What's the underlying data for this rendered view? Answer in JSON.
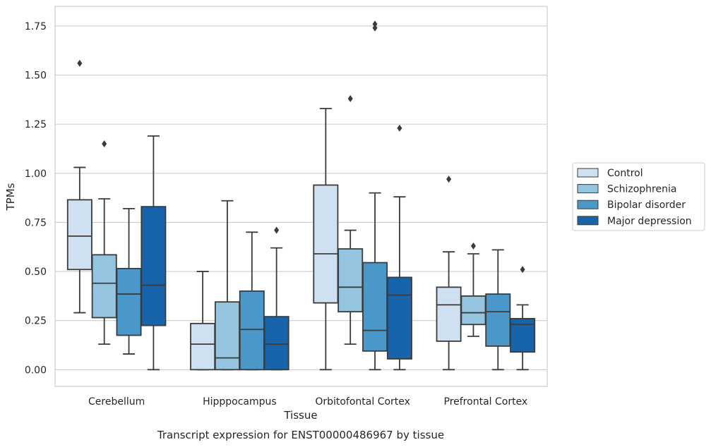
{
  "chart_data": {
    "type": "box",
    "caption": "Transcript expression for ENST00000486967 by tissue",
    "xlabel": "Tissue",
    "ylabel": "TPMs",
    "ylim": [
      -0.085,
      1.85
    ],
    "yticks": [
      "0.00",
      "0.25",
      "0.50",
      "0.75",
      "1.00",
      "1.25",
      "1.50",
      "1.75"
    ],
    "ytick_values": [
      0,
      0.25,
      0.5,
      0.75,
      1.0,
      1.25,
      1.5,
      1.75
    ],
    "grid": true,
    "legend_position": "right",
    "categories": [
      "Cerebellum",
      "Hipppocampus",
      "Orbitofontal Cortex",
      "Prefrontal Cortex"
    ],
    "series": [
      {
        "name": "Control",
        "color": "#cfe0f1",
        "boxes": [
          {
            "whislo": 0.29,
            "q1": 0.51,
            "med": 0.68,
            "q3": 0.865,
            "whishi": 1.03,
            "fliers": [
              1.56
            ]
          },
          {
            "whislo": 0.0,
            "q1": 0.0,
            "med": 0.13,
            "q3": 0.235,
            "whishi": 0.5,
            "fliers": []
          },
          {
            "whislo": 0.0,
            "q1": 0.34,
            "med": 0.59,
            "q3": 0.94,
            "whishi": 1.33,
            "fliers": []
          },
          {
            "whislo": 0.0,
            "q1": 0.145,
            "med": 0.33,
            "q3": 0.42,
            "whishi": 0.6,
            "fliers": [
              0.97
            ]
          }
        ]
      },
      {
        "name": "Schizophrenia",
        "color": "#94c4df",
        "boxes": [
          {
            "whislo": 0.13,
            "q1": 0.265,
            "med": 0.44,
            "q3": 0.585,
            "whishi": 0.87,
            "fliers": [
              1.15
            ]
          },
          {
            "whislo": 0.0,
            "q1": 0.0,
            "med": 0.06,
            "q3": 0.345,
            "whishi": 0.86,
            "fliers": []
          },
          {
            "whislo": 0.13,
            "q1": 0.295,
            "med": 0.42,
            "q3": 0.615,
            "whishi": 0.71,
            "fliers": [
              1.38
            ]
          },
          {
            "whislo": 0.17,
            "q1": 0.23,
            "med": 0.29,
            "q3": 0.375,
            "whishi": 0.59,
            "fliers": [
              0.63
            ]
          }
        ]
      },
      {
        "name": "Bipolar disorder",
        "color": "#4a98c9",
        "boxes": [
          {
            "whislo": 0.08,
            "q1": 0.175,
            "med": 0.385,
            "q3": 0.515,
            "whishi": 0.82,
            "fliers": []
          },
          {
            "whislo": 0.0,
            "q1": 0.0,
            "med": 0.205,
            "q3": 0.4,
            "whishi": 0.7,
            "fliers": []
          },
          {
            "whislo": 0.0,
            "q1": 0.095,
            "med": 0.2,
            "q3": 0.545,
            "whishi": 0.9,
            "fliers": [
              1.74,
              1.76
            ]
          },
          {
            "whislo": 0.0,
            "q1": 0.12,
            "med": 0.295,
            "q3": 0.385,
            "whishi": 0.61,
            "fliers": []
          }
        ]
      },
      {
        "name": "Major depression",
        "color": "#1764ab",
        "boxes": [
          {
            "whislo": 0.0,
            "q1": 0.225,
            "med": 0.43,
            "q3": 0.83,
            "whishi": 1.19,
            "fliers": []
          },
          {
            "whislo": 0.0,
            "q1": 0.0,
            "med": 0.13,
            "q3": 0.27,
            "whishi": 0.62,
            "fliers": [
              0.71
            ]
          },
          {
            "whislo": 0.0,
            "q1": 0.055,
            "med": 0.38,
            "q3": 0.47,
            "whishi": 0.88,
            "fliers": [
              1.23
            ]
          },
          {
            "whislo": 0.0,
            "q1": 0.09,
            "med": 0.23,
            "q3": 0.26,
            "whishi": 0.33,
            "fliers": [
              0.51
            ]
          }
        ]
      }
    ]
  },
  "colors": {
    "grid": "#cccccc",
    "axes_frame": "#cccccc",
    "box_edge": "#3b3b3b",
    "text": "#262626"
  }
}
